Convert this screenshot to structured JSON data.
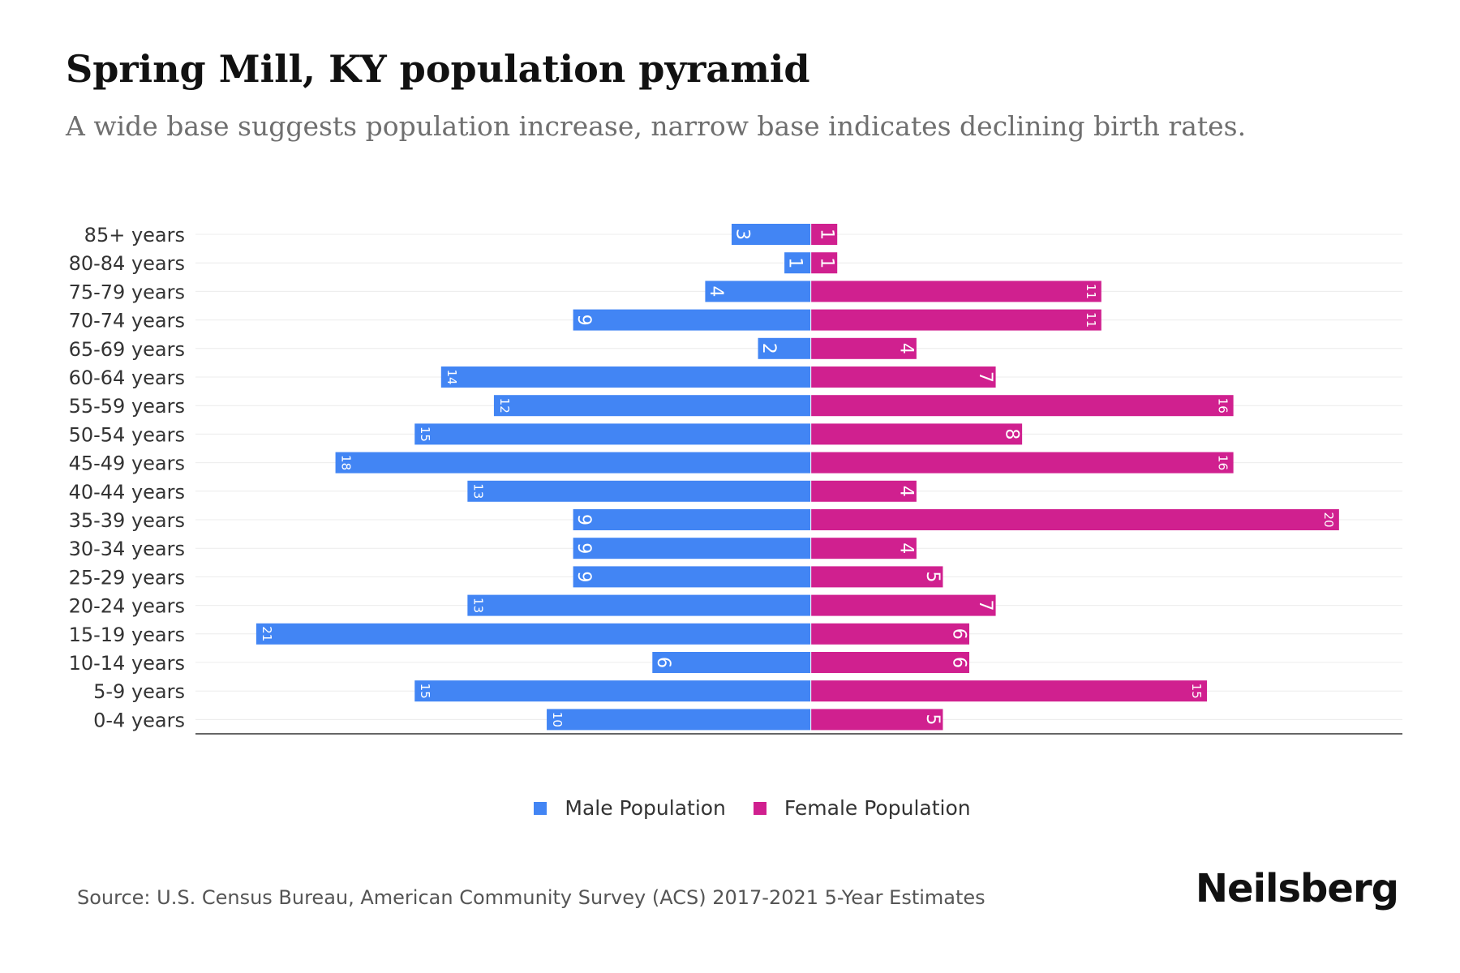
{
  "chart_data": {
    "type": "bar",
    "orientation": "horizontal",
    "title": "Spring Mill, KY population pyramid",
    "subtitle": "A wide base suggests population increase, narrow base indicates declining birth rates.",
    "categories": [
      "85+ years",
      "80-84 years",
      "75-79 years",
      "70-74 years",
      "65-69 years",
      "60-64 years",
      "55-59 years",
      "50-54 years",
      "45-49 years",
      "40-44 years",
      "35-39 years",
      "30-34 years",
      "25-29 years",
      "20-24 years",
      "15-19 years",
      "10-14 years",
      "5-9 years",
      "0-4 years"
    ],
    "series": [
      {
        "name": "Male Population",
        "color": "#4285f4",
        "values": [
          3,
          1,
          4,
          9,
          2,
          14,
          12,
          15,
          18,
          13,
          9,
          9,
          9,
          13,
          21,
          6,
          15,
          10
        ]
      },
      {
        "name": "Female Population",
        "color": "#d0208f",
        "values": [
          1,
          1,
          11,
          11,
          4,
          7,
          16,
          8,
          16,
          4,
          20,
          4,
          5,
          7,
          6,
          6,
          15,
          5
        ]
      }
    ],
    "xlim": [
      -23.3,
      22.4
    ],
    "grid": true,
    "legend_position": "bottom-center"
  },
  "legend": {
    "male": "Male Population",
    "female": "Female Population"
  },
  "source": "Source: U.S. Census Bureau, American Community Survey (ACS) 2017-2021 5-Year Estimates",
  "brand": "Neilsberg"
}
